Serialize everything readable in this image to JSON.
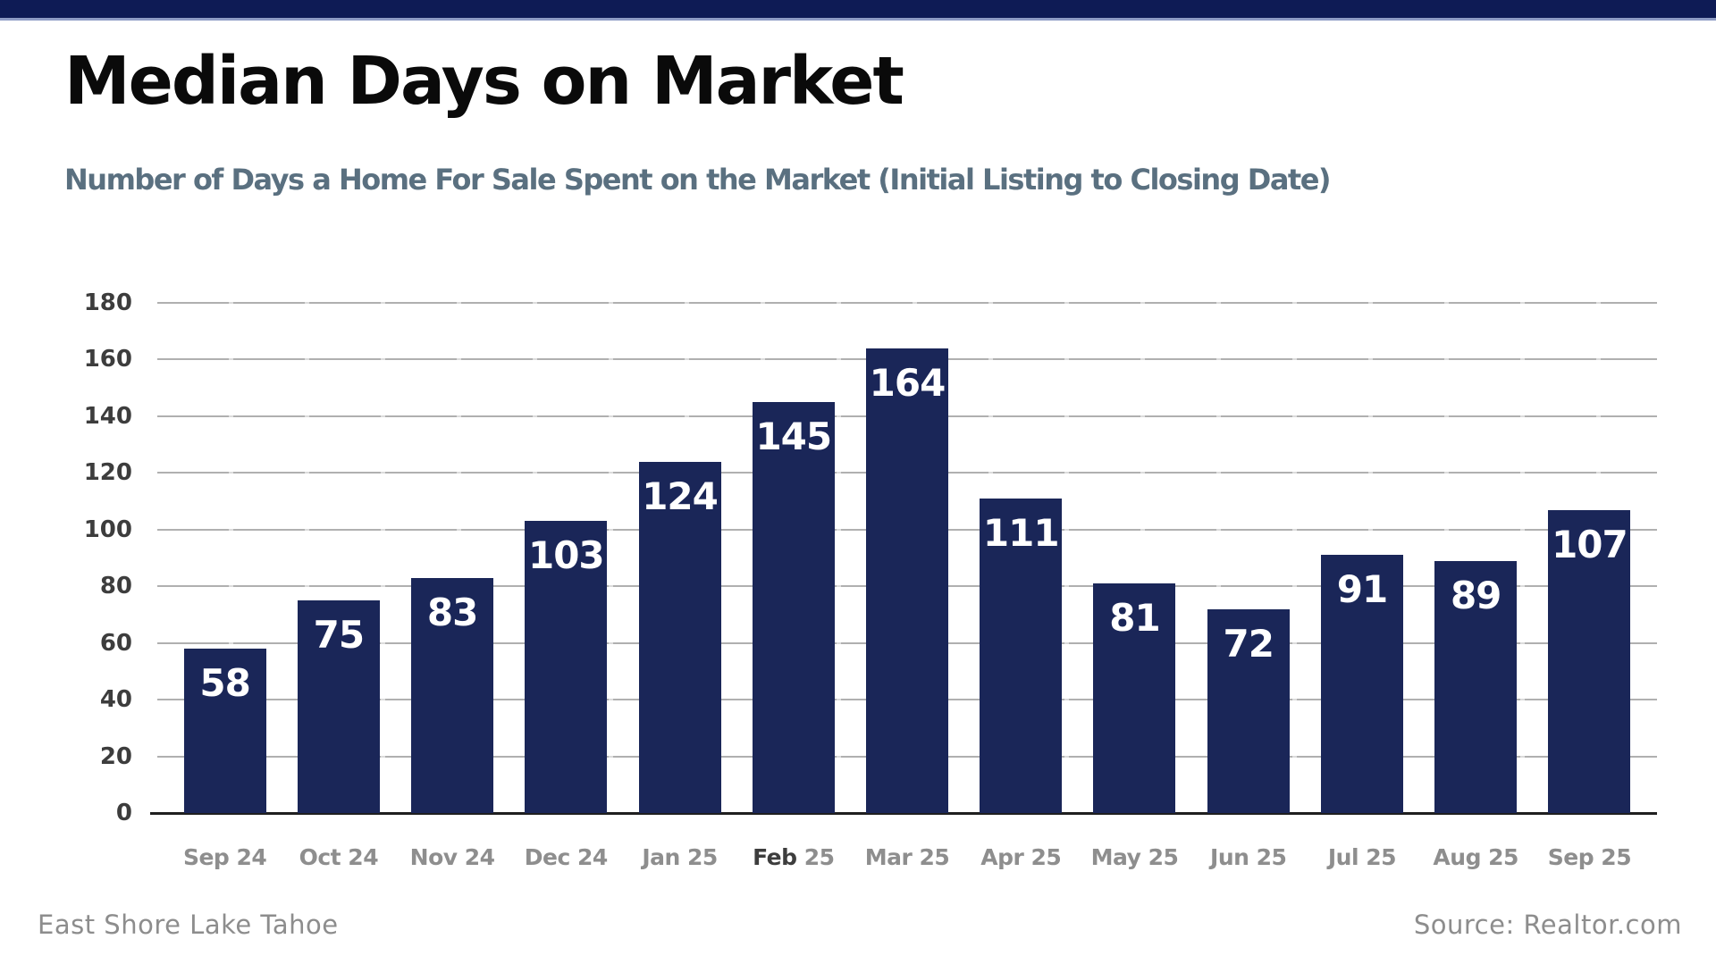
{
  "header": {
    "title": "Median Days on Market",
    "subtitle": "Number of Days a Home For Sale Spent on the Market (Initial Listing to Closing Date)"
  },
  "footer": {
    "left": "East Shore Lake Tahoe",
    "right": "Source: Realtor.com"
  },
  "colors": {
    "banner": "#0e1b55",
    "banner_edge": "#8e9cc5",
    "bar": "#1a2658",
    "title": "#0a0a0a",
    "subtitle": "#5a7080",
    "y_label": "#3d3d3d",
    "x_label": "#8e8e8e",
    "x_label_emphasis": "#3d3d3d",
    "gridline": "#b0b0b0",
    "baseline": "#1f1f1f",
    "value_label": "#ffffff",
    "footer": "#8d8d8d"
  },
  "chart_data": {
    "type": "bar",
    "title": "Median Days on Market",
    "subtitle": "Number of Days a Home For Sale Spent on the Market (Initial Listing to Closing Date)",
    "categories": [
      "Sep 24",
      "Oct 24",
      "Nov 24",
      "Dec 24",
      "Jan 25",
      "Feb 25",
      "Mar 25",
      "Apr 25",
      "May 25",
      "Jun 25",
      "Jul 25",
      "Aug 25",
      "Sep 25"
    ],
    "values": [
      58,
      75,
      83,
      103,
      124,
      145,
      164,
      111,
      81,
      72,
      91,
      89,
      107
    ],
    "emphasized_category": "Feb 25",
    "xlabel": "",
    "ylabel": "",
    "ylim": [
      0,
      180
    ],
    "yticks": [
      0,
      20,
      40,
      60,
      80,
      100,
      120,
      140,
      160,
      180
    ],
    "grid": true,
    "legend": "none",
    "value_labels": "inside-top"
  }
}
